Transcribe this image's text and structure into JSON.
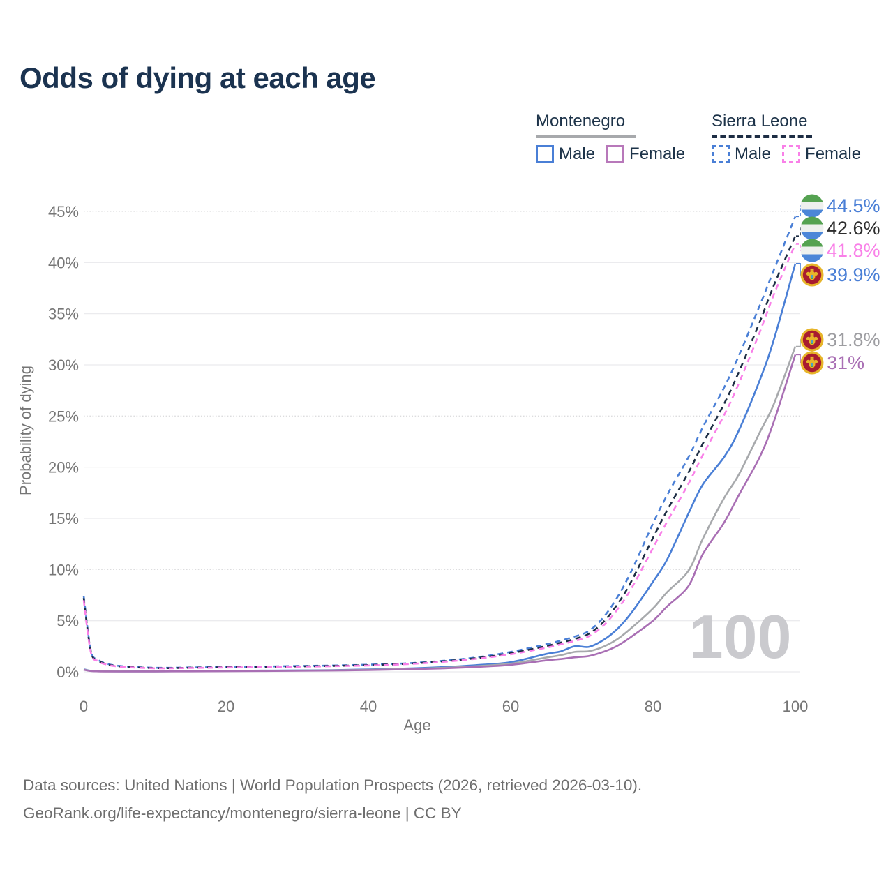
{
  "title": "Odds of dying at each age",
  "watermark": "100",
  "legend": {
    "groups": [
      {
        "name": "Montenegro",
        "line_style": "solid",
        "underline_color": "#a7a9ac",
        "items": [
          {
            "label": "Male",
            "color": "#4a7fd6",
            "dashed": false
          },
          {
            "label": "Female",
            "color": "#b878ba",
            "dashed": false
          }
        ]
      },
      {
        "name": "Sierra Leone",
        "line_style": "dashed",
        "underline_color": "#1d2d44",
        "items": [
          {
            "label": "Male",
            "color": "#4a7fd6",
            "dashed": true
          },
          {
            "label": "Female",
            "color": "#f980e8",
            "dashed": true
          }
        ]
      }
    ]
  },
  "footer": {
    "line1": "Data sources: United Nations | World Population Prospects (2026, retrieved 2026-03-10).",
    "line2": "GeoRank.org/life-expectancy/montenegro/sierra-leone | CC BY"
  },
  "chart_data": {
    "type": "line",
    "title": "Odds of dying at each age",
    "xlabel": "Age",
    "ylabel": "Probability of dying",
    "xlim": [
      0,
      100
    ],
    "ylim": [
      0,
      45.5
    ],
    "x_ticks": [
      0,
      20,
      40,
      60,
      80,
      100
    ],
    "y_ticks_percent": [
      0,
      5,
      10,
      15,
      20,
      25,
      30,
      35,
      40,
      45
    ],
    "dotted_gridlines_percent": [
      10,
      25,
      45
    ],
    "grid": true,
    "legend_position": "top-right",
    "ages": [
      0,
      1,
      2,
      3,
      5,
      10,
      15,
      20,
      25,
      30,
      35,
      40,
      45,
      50,
      55,
      60,
      65,
      67,
      69,
      71,
      73,
      75,
      77,
      80,
      82,
      85,
      87,
      90,
      92,
      95,
      97,
      100
    ],
    "series": [
      {
        "name": "Sierra Leone Male",
        "country": "Sierra Leone",
        "sex": "male",
        "color": "#4a7fd6",
        "dashed": true,
        "flag": "sierra-leone",
        "end_label": "44.5%",
        "end_value": 44.5,
        "label_color": "#4a7fd6",
        "values": [
          7.4,
          2.1,
          1.2,
          0.85,
          0.58,
          0.4,
          0.43,
          0.48,
          0.52,
          0.57,
          0.62,
          0.7,
          0.82,
          1.05,
          1.4,
          1.95,
          2.7,
          3.05,
          3.45,
          4.0,
          5.3,
          7.3,
          9.9,
          14.5,
          17.3,
          21.0,
          23.9,
          27.8,
          30.8,
          35.8,
          39.3,
          44.5
        ]
      },
      {
        "name": "Sierra Leone Both sexes",
        "country": "Sierra Leone",
        "sex": "both",
        "color": "#1d2d44",
        "dashed": true,
        "flag": "sierra-leone",
        "end_label": "42.6%",
        "end_value": 42.6,
        "label_color": "#2d2d2d",
        "values": [
          7.2,
          2.0,
          1.12,
          0.8,
          0.54,
          0.37,
          0.4,
          0.45,
          0.49,
          0.53,
          0.58,
          0.66,
          0.78,
          1.0,
          1.32,
          1.82,
          2.52,
          2.85,
          3.22,
          3.72,
          4.85,
          6.6,
          8.9,
          13.1,
          15.8,
          19.5,
          22.3,
          26.2,
          29.2,
          34.2,
          37.8,
          42.6
        ]
      },
      {
        "name": "Sierra Leone Female",
        "country": "Sierra Leone",
        "sex": "female",
        "color": "#f980e8",
        "dashed": true,
        "flag": "sierra-leone",
        "end_label": "41.8%",
        "end_value": 41.8,
        "label_color": "#f980e8",
        "values": [
          7.0,
          1.9,
          1.05,
          0.76,
          0.51,
          0.35,
          0.38,
          0.42,
          0.46,
          0.5,
          0.55,
          0.62,
          0.74,
          0.95,
          1.26,
          1.72,
          2.36,
          2.68,
          3.02,
          3.48,
          4.5,
          6.1,
          8.2,
          12.1,
          14.7,
          18.4,
          21.2,
          25.1,
          28.1,
          33.2,
          36.9,
          41.8
        ]
      },
      {
        "name": "Montenegro Male",
        "country": "Montenegro",
        "sex": "male",
        "color": "#4a7fd6",
        "dashed": false,
        "flag": "montenegro",
        "end_label": "39.9%",
        "end_value": 39.9,
        "label_color": "#4a7fd6",
        "values": [
          0.25,
          0.1,
          0.07,
          0.06,
          0.05,
          0.05,
          0.07,
          0.09,
          0.12,
          0.14,
          0.17,
          0.23,
          0.32,
          0.45,
          0.65,
          0.95,
          1.75,
          2.0,
          2.5,
          2.45,
          3.1,
          4.2,
          5.8,
          8.8,
          11.0,
          15.5,
          18.3,
          21.0,
          23.5,
          28.5,
          32.5,
          39.9
        ]
      },
      {
        "name": "Montenegro Both sexes",
        "country": "Montenegro",
        "sex": "both",
        "color": "#a7a9ac",
        "dashed": false,
        "flag": "montenegro",
        "end_label": "31.8%",
        "end_value": 31.8,
        "label_color": "#9d9da1",
        "values": [
          0.22,
          0.09,
          0.06,
          0.05,
          0.045,
          0.045,
          0.06,
          0.08,
          0.1,
          0.12,
          0.15,
          0.2,
          0.28,
          0.38,
          0.55,
          0.8,
          1.4,
          1.62,
          1.95,
          2.02,
          2.45,
          3.2,
          4.3,
          6.2,
          7.8,
          9.9,
          13.0,
          17.0,
          19.2,
          23.4,
          26.2,
          31.8
        ]
      },
      {
        "name": "Montenegro Female",
        "country": "Montenegro",
        "sex": "female",
        "color": "#a96fb4",
        "dashed": false,
        "flag": "montenegro",
        "end_label": "31%",
        "end_value": 31.0,
        "label_color": "#a96fb4",
        "values": [
          0.2,
          0.08,
          0.05,
          0.04,
          0.035,
          0.04,
          0.05,
          0.06,
          0.08,
          0.1,
          0.13,
          0.17,
          0.24,
          0.33,
          0.47,
          0.68,
          1.12,
          1.25,
          1.42,
          1.55,
          1.95,
          2.55,
          3.45,
          5.0,
          6.4,
          8.4,
          11.5,
          14.6,
          17.2,
          21.0,
          24.5,
          31.0
        ]
      }
    ],
    "flag_colors": {
      "sierra_leone_green": "#55a251",
      "sierra_leone_white": "#eef0ee",
      "sierra_leone_blue": "#4c86d8",
      "montenegro_red": "#a81c30",
      "montenegro_gold": "#e7b52a"
    }
  }
}
